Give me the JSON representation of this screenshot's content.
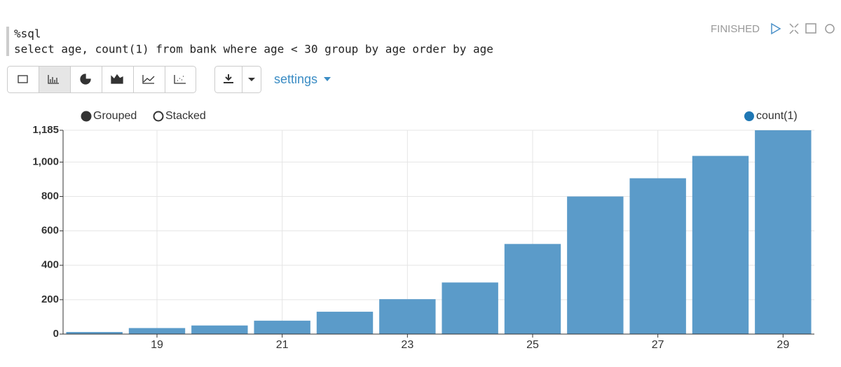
{
  "paragraph": {
    "code": [
      "%sql",
      "select age, count(1) from bank where age < 30 group by age order by age"
    ],
    "status": "FINISHED",
    "settings": "settings"
  },
  "chart_data": {
    "type": "bar",
    "modes": [
      "Grouped",
      "Stacked"
    ],
    "categories": [
      null,
      "19",
      null,
      "21",
      null,
      "23",
      null,
      "25",
      null,
      "27",
      null,
      "29"
    ],
    "series": [
      {
        "name": "count(1)",
        "color": "#5b9bc9",
        "values": [
          12,
          35,
          50,
          78,
          130,
          203,
          300,
          524,
          800,
          906,
          1036,
          1185
        ]
      }
    ],
    "legend_color": "#1f77b4",
    "ylim": [
      0,
      1185
    ],
    "yticks": [
      0,
      200,
      400,
      600,
      800,
      {
        "value": 1000,
        "label": "1,000"
      },
      {
        "value": 1185,
        "label": "1,185"
      }
    ],
    "grid": true
  }
}
